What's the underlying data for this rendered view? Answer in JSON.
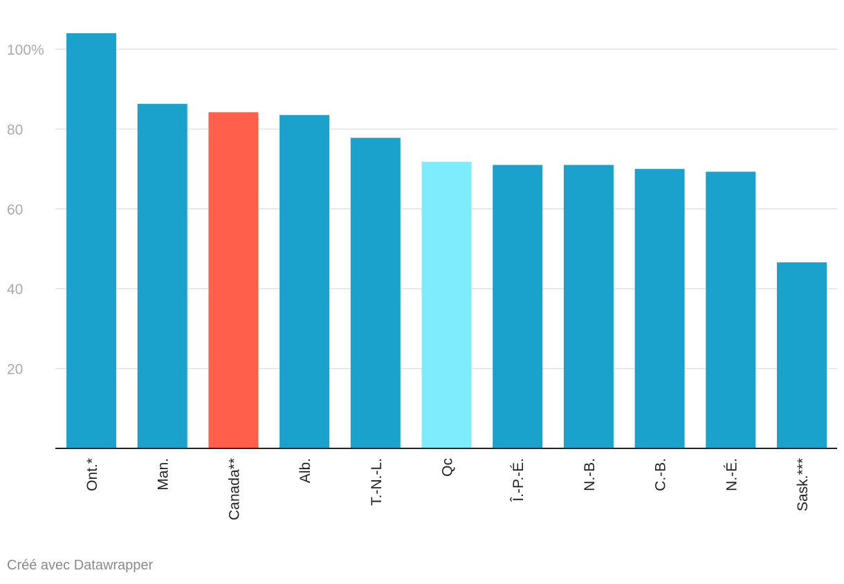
{
  "chart_data": {
    "type": "bar",
    "categories": [
      "Ont.*",
      "Man.",
      "Canada**",
      "Alb.",
      "T.-N.-L.",
      "Qc",
      "Î.-P.-É.",
      "N.-B.",
      "C.-B.",
      "N.-É.",
      "Sask.***"
    ],
    "values": [
      104,
      86.3,
      84.2,
      83.5,
      77.8,
      71.8,
      71.0,
      71.0,
      70.0,
      69.3,
      46.6
    ],
    "colors": [
      "#1aa1cc",
      "#1aa1cc",
      "#ff5f4b",
      "#1aa1cc",
      "#1aa1cc",
      "#7eecfc",
      "#1aa1cc",
      "#1aa1cc",
      "#1aa1cc",
      "#1aa1cc",
      "#1aa1cc"
    ],
    "ylim": [
      0,
      104
    ],
    "yticks": [
      {
        "value": 20,
        "label": "20"
      },
      {
        "value": 40,
        "label": "40"
      },
      {
        "value": 60,
        "label": "60"
      },
      {
        "value": 80,
        "label": "80"
      },
      {
        "value": 100,
        "label": "100%"
      }
    ],
    "grid": true,
    "title": "",
    "xlabel": "",
    "ylabel": ""
  },
  "footer": {
    "credit": "Créé avec Datawrapper"
  }
}
